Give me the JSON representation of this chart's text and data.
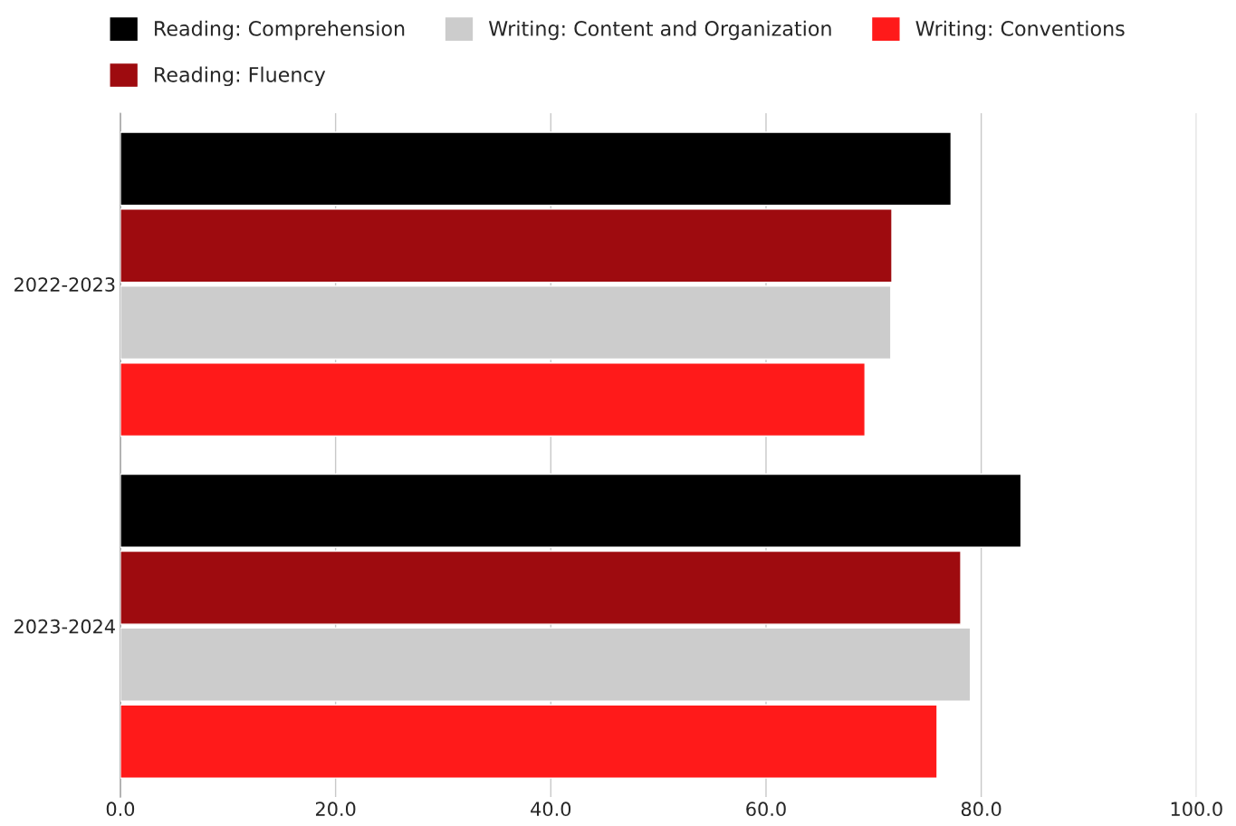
{
  "chart_data": {
    "type": "bar",
    "orientation": "horizontal",
    "categories": [
      "2022-2023",
      "2023-2024"
    ],
    "series": [
      {
        "name": "Reading: Comprehension",
        "color": "#000000",
        "values": [
          77.2,
          83.7
        ]
      },
      {
        "name": "Reading: Fluency",
        "color": "#9e0b0f",
        "values": [
          71.7,
          78.1
        ]
      },
      {
        "name": "Writing: Content and Organization",
        "color": "#cccccc",
        "values": [
          71.6,
          79.0
        ]
      },
      {
        "name": "Writing: Conventions",
        "color": "#ff1a1a",
        "values": [
          69.2,
          75.9
        ]
      }
    ],
    "xlim": [
      0,
      100
    ],
    "xticks": [
      {
        "value": 0,
        "label": "0.0"
      },
      {
        "value": 20,
        "label": "20.0"
      },
      {
        "value": 40,
        "label": "40.0"
      },
      {
        "value": 60,
        "label": "60.0"
      },
      {
        "value": 80,
        "label": "80.0"
      },
      {
        "value": 100,
        "label": "100.0"
      }
    ],
    "grid": "x",
    "legend": "top"
  }
}
